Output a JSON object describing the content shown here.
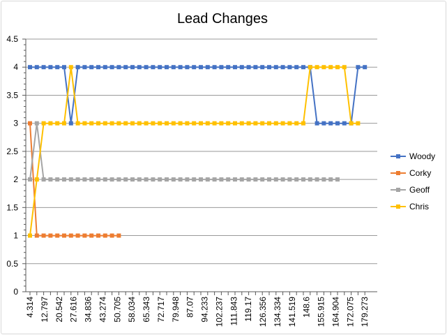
{
  "chart_data": {
    "type": "line",
    "title": "Lead Changes",
    "ylim": [
      0,
      4.5
    ],
    "yticks": [
      0,
      0.5,
      1,
      1.5,
      2,
      2.5,
      3,
      3.5,
      4,
      4.5
    ],
    "ytick_labels": [
      "0",
      "0.5",
      "1",
      "1.5",
      "2",
      "2.5",
      "3",
      "3.5",
      "4",
      "4.5"
    ],
    "x_tick_labels": [
      "4.314",
      "12.797",
      "20.542",
      "27.616",
      "34.836",
      "43.274",
      "50.705",
      "58.034",
      "65.343",
      "72.717",
      "79.948",
      "87.07",
      "94.233",
      "102.237",
      "111.843",
      "119.17",
      "126.356",
      "134.334",
      "141.519",
      "148.6",
      "155.915",
      "164.904",
      "172.075",
      "179.273"
    ],
    "grid": true,
    "legend_position": "right",
    "series": [
      {
        "name": "Woody",
        "color": "#4472c4",
        "values": [
          4,
          4,
          4,
          4,
          4,
          4,
          3,
          4,
          4,
          4,
          4,
          4,
          4,
          4,
          4,
          4,
          4,
          4,
          4,
          4,
          4,
          4,
          4,
          4,
          4,
          4,
          4,
          4,
          4,
          4,
          4,
          4,
          4,
          4,
          4,
          4,
          4,
          4,
          4,
          4,
          4,
          4,
          3,
          3,
          3,
          3,
          3,
          3,
          4,
          4
        ]
      },
      {
        "name": "Corky",
        "color": "#ed7d31",
        "values": [
          3,
          1,
          1,
          1,
          1,
          1,
          1,
          1,
          1,
          1,
          1,
          1,
          1,
          1
        ]
      },
      {
        "name": "Geoff",
        "color": "#a5a5a5",
        "values": [
          2,
          3,
          2,
          2,
          2,
          2,
          2,
          2,
          2,
          2,
          2,
          2,
          2,
          2,
          2,
          2,
          2,
          2,
          2,
          2,
          2,
          2,
          2,
          2,
          2,
          2,
          2,
          2,
          2,
          2,
          2,
          2,
          2,
          2,
          2,
          2,
          2,
          2,
          2,
          2,
          2,
          2,
          2,
          2,
          2,
          2
        ]
      },
      {
        "name": "Chris",
        "color": "#ffc000",
        "values": [
          1,
          2,
          3,
          3,
          3,
          3,
          4,
          3,
          3,
          3,
          3,
          3,
          3,
          3,
          3,
          3,
          3,
          3,
          3,
          3,
          3,
          3,
          3,
          3,
          3,
          3,
          3,
          3,
          3,
          3,
          3,
          3,
          3,
          3,
          3,
          3,
          3,
          3,
          3,
          3,
          3,
          4,
          4,
          4,
          4,
          4,
          4,
          3,
          3
        ]
      }
    ]
  }
}
